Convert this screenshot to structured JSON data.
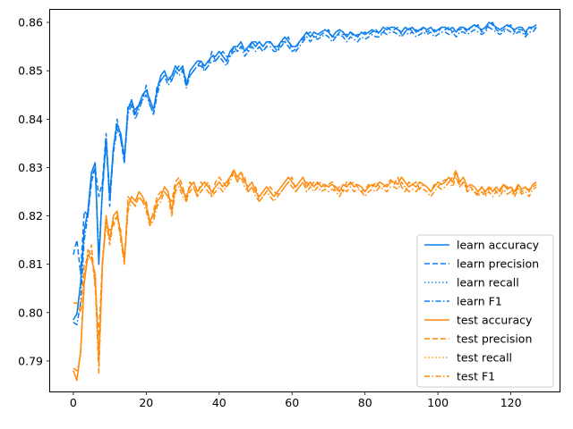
{
  "chart_data": {
    "type": "line",
    "title": "",
    "xlabel": "",
    "ylabel": "",
    "xlim": [
      -6.35,
      133.35
    ],
    "ylim": [
      0.7837,
      0.8626
    ],
    "xticks": [
      0,
      20,
      40,
      60,
      80,
      100,
      120
    ],
    "yticks": [
      0.79,
      0.8,
      0.81,
      0.82,
      0.83,
      0.84,
      0.85,
      0.86
    ],
    "ytick_labels": [
      "0.79",
      "0.80",
      "0.81",
      "0.82",
      "0.83",
      "0.84",
      "0.85",
      "0.86"
    ],
    "grid": false,
    "legend_position": "lower-right",
    "colors": {
      "learn": "#1f77b4",
      "test": "#ff7f0e",
      "learn_render": "#0a7ef0",
      "test_render": "#ff8c0f"
    },
    "series": [
      {
        "name": "learn accuracy",
        "color": "#0a7ef0",
        "style": "solid",
        "values": [
          0.7985,
          0.7998,
          0.806,
          0.817,
          0.821,
          0.829,
          0.831,
          0.81,
          0.826,
          0.836,
          0.824,
          0.834,
          0.839,
          0.837,
          0.832,
          0.842,
          0.844,
          0.841,
          0.843,
          0.845,
          0.846,
          0.844,
          0.842,
          0.846,
          0.849,
          0.85,
          0.848,
          0.849,
          0.851,
          0.85,
          0.851,
          0.847,
          0.85,
          0.851,
          0.852,
          0.852,
          0.851,
          0.852,
          0.853,
          0.853,
          0.854,
          0.853,
          0.852,
          0.854,
          0.855,
          0.855,
          0.856,
          0.854,
          0.855,
          0.856,
          0.855,
          0.856,
          0.855,
          0.856,
          0.856,
          0.855,
          0.855,
          0.856,
          0.857,
          0.856,
          0.855,
          0.855,
          0.856,
          0.857,
          0.858,
          0.857,
          0.858,
          0.8575,
          0.858,
          0.8585,
          0.858,
          0.857,
          0.858,
          0.8585,
          0.858,
          0.857,
          0.858,
          0.8575,
          0.857,
          0.858,
          0.8575,
          0.858,
          0.8585,
          0.858,
          0.858,
          0.859,
          0.8585,
          0.859,
          0.859,
          0.8585,
          0.858,
          0.859,
          0.8585,
          0.859,
          0.858,
          0.8585,
          0.859,
          0.8585,
          0.859,
          0.858,
          0.8585,
          0.859,
          0.859,
          0.8585,
          0.859,
          0.858,
          0.859,
          0.859,
          0.8585,
          0.859,
          0.8595,
          0.859,
          0.8585,
          0.859,
          0.86,
          0.8595,
          0.859,
          0.8585,
          0.859,
          0.8595,
          0.859,
          0.8585,
          0.859,
          0.859,
          0.858,
          0.859,
          0.859,
          0.8595
        ]
      },
      {
        "name": "learn precision",
        "color": "#0a7ef0",
        "style": "dashed",
        "values": [
          0.812,
          0.815,
          0.808,
          0.821,
          0.82,
          0.827,
          0.83,
          0.824,
          0.827,
          0.837,
          0.822,
          0.834,
          0.84,
          0.836,
          0.831,
          0.843,
          0.843,
          0.842,
          0.843,
          0.844,
          0.847,
          0.843,
          0.841,
          0.847,
          0.848,
          0.849,
          0.849,
          0.848,
          0.85,
          0.851,
          0.85,
          0.848,
          0.849,
          0.85,
          0.851,
          0.852,
          0.85,
          0.851,
          0.854,
          0.852,
          0.853,
          0.854,
          0.853,
          0.853,
          0.855,
          0.854,
          0.855,
          0.855,
          0.854,
          0.856,
          0.856,
          0.855,
          0.854,
          0.855,
          0.856,
          0.855,
          0.854,
          0.856,
          0.856,
          0.857,
          0.854,
          0.8545,
          0.856,
          0.8565,
          0.8575,
          0.858,
          0.857,
          0.857,
          0.8575,
          0.858,
          0.8585,
          0.857,
          0.857,
          0.858,
          0.8575,
          0.8575,
          0.858,
          0.857,
          0.8575,
          0.8575,
          0.858,
          0.8575,
          0.858,
          0.8585,
          0.8575,
          0.858,
          0.859,
          0.8585,
          0.8585,
          0.859,
          0.8575,
          0.858,
          0.859,
          0.858,
          0.8585,
          0.858,
          0.859,
          0.858,
          0.8585,
          0.8585,
          0.858,
          0.859,
          0.8585,
          0.859,
          0.858,
          0.8585,
          0.8585,
          0.859,
          0.858,
          0.859,
          0.859,
          0.8595,
          0.858,
          0.8585,
          0.8595,
          0.86,
          0.8585,
          0.858,
          0.8585,
          0.859,
          0.8595,
          0.858,
          0.8585,
          0.8585,
          0.8575,
          0.859,
          0.8585,
          0.859
        ]
      },
      {
        "name": "learn recall",
        "color": "#0a7ef0",
        "style": "dotted",
        "values": [
          0.7985,
          0.7998,
          0.806,
          0.817,
          0.821,
          0.829,
          0.831,
          0.81,
          0.826,
          0.836,
          0.824,
          0.834,
          0.839,
          0.837,
          0.832,
          0.842,
          0.844,
          0.841,
          0.843,
          0.845,
          0.846,
          0.844,
          0.842,
          0.846,
          0.849,
          0.85,
          0.848,
          0.849,
          0.851,
          0.85,
          0.851,
          0.847,
          0.85,
          0.851,
          0.852,
          0.852,
          0.851,
          0.852,
          0.853,
          0.853,
          0.854,
          0.853,
          0.852,
          0.854,
          0.855,
          0.855,
          0.856,
          0.854,
          0.855,
          0.856,
          0.855,
          0.856,
          0.855,
          0.856,
          0.856,
          0.855,
          0.855,
          0.856,
          0.857,
          0.856,
          0.855,
          0.855,
          0.856,
          0.857,
          0.858,
          0.857,
          0.858,
          0.8575,
          0.858,
          0.8585,
          0.858,
          0.857,
          0.858,
          0.8585,
          0.858,
          0.857,
          0.858,
          0.8575,
          0.857,
          0.858,
          0.8575,
          0.858,
          0.8585,
          0.858,
          0.858,
          0.859,
          0.8585,
          0.859,
          0.859,
          0.8585,
          0.858,
          0.859,
          0.8585,
          0.859,
          0.858,
          0.8585,
          0.859,
          0.8585,
          0.859,
          0.858,
          0.8585,
          0.859,
          0.859,
          0.8585,
          0.859,
          0.858,
          0.859,
          0.859,
          0.8585,
          0.859,
          0.8595,
          0.859,
          0.8585,
          0.859,
          0.86,
          0.8595,
          0.859,
          0.8585,
          0.859,
          0.8595,
          0.859,
          0.8585,
          0.859,
          0.859,
          0.858,
          0.859,
          0.859,
          0.8595
        ]
      },
      {
        "name": "learn F1",
        "color": "#0a7ef0",
        "style": "dashdot",
        "values": [
          0.798,
          0.7975,
          0.802,
          0.815,
          0.82,
          0.828,
          0.83,
          0.812,
          0.825,
          0.835,
          0.823,
          0.833,
          0.838,
          0.836,
          0.831,
          0.841,
          0.843,
          0.84,
          0.842,
          0.844,
          0.845,
          0.843,
          0.841,
          0.845,
          0.848,
          0.849,
          0.847,
          0.848,
          0.85,
          0.849,
          0.85,
          0.8465,
          0.849,
          0.85,
          0.851,
          0.851,
          0.85,
          0.851,
          0.852,
          0.852,
          0.853,
          0.852,
          0.851,
          0.853,
          0.854,
          0.854,
          0.855,
          0.853,
          0.854,
          0.855,
          0.854,
          0.855,
          0.854,
          0.855,
          0.855,
          0.854,
          0.854,
          0.855,
          0.856,
          0.855,
          0.854,
          0.854,
          0.855,
          0.856,
          0.857,
          0.856,
          0.857,
          0.8565,
          0.857,
          0.8575,
          0.857,
          0.856,
          0.857,
          0.8575,
          0.857,
          0.856,
          0.857,
          0.8565,
          0.856,
          0.857,
          0.8565,
          0.857,
          0.8575,
          0.857,
          0.857,
          0.858,
          0.8575,
          0.858,
          0.858,
          0.8575,
          0.857,
          0.858,
          0.8575,
          0.858,
          0.857,
          0.8575,
          0.858,
          0.8575,
          0.858,
          0.857,
          0.8575,
          0.858,
          0.858,
          0.8575,
          0.858,
          0.857,
          0.858,
          0.858,
          0.8575,
          0.858,
          0.8585,
          0.858,
          0.8575,
          0.858,
          0.859,
          0.8585,
          0.858,
          0.8575,
          0.858,
          0.8585,
          0.858,
          0.8575,
          0.858,
          0.858,
          0.857,
          0.858,
          0.858,
          0.859
        ]
      },
      {
        "name": "test accuracy",
        "color": "#ff8c0f",
        "style": "solid",
        "values": [
          0.788,
          0.786,
          0.792,
          0.806,
          0.812,
          0.811,
          0.808,
          0.79,
          0.81,
          0.82,
          0.815,
          0.82,
          0.821,
          0.816,
          0.811,
          0.822,
          0.824,
          0.823,
          0.825,
          0.824,
          0.822,
          0.819,
          0.82,
          0.823,
          0.824,
          0.826,
          0.825,
          0.821,
          0.826,
          0.827,
          0.825,
          0.824,
          0.826,
          0.827,
          0.825,
          0.826,
          0.827,
          0.826,
          0.825,
          0.826,
          0.827,
          0.826,
          0.827,
          0.828,
          0.8295,
          0.828,
          0.829,
          0.827,
          0.826,
          0.827,
          0.825,
          0.824,
          0.825,
          0.826,
          0.825,
          0.824,
          0.825,
          0.826,
          0.827,
          0.828,
          0.827,
          0.826,
          0.827,
          0.828,
          0.826,
          0.827,
          0.826,
          0.827,
          0.826,
          0.8265,
          0.826,
          0.8265,
          0.826,
          0.825,
          0.8265,
          0.826,
          0.827,
          0.826,
          0.8265,
          0.826,
          0.825,
          0.826,
          0.8265,
          0.826,
          0.827,
          0.8265,
          0.826,
          0.827,
          0.827,
          0.8265,
          0.828,
          0.827,
          0.826,
          0.8265,
          0.826,
          0.827,
          0.8265,
          0.826,
          0.825,
          0.826,
          0.827,
          0.8265,
          0.827,
          0.828,
          0.827,
          0.829,
          0.827,
          0.828,
          0.826,
          0.8265,
          0.826,
          0.825,
          0.826,
          0.825,
          0.826,
          0.825,
          0.826,
          0.825,
          0.8265,
          0.8255,
          0.826,
          0.825,
          0.8265,
          0.8255,
          0.826,
          0.825,
          0.8265,
          0.827
        ]
      },
      {
        "name": "test precision",
        "color": "#ff8c0f",
        "style": "dashed",
        "values": [
          0.802,
          0.802,
          0.8,
          0.81,
          0.811,
          0.814,
          0.805,
          0.795,
          0.811,
          0.818,
          0.817,
          0.818,
          0.82,
          0.817,
          0.81,
          0.824,
          0.823,
          0.822,
          0.824,
          0.823,
          0.823,
          0.818,
          0.821,
          0.824,
          0.825,
          0.825,
          0.824,
          0.823,
          0.827,
          0.828,
          0.826,
          0.823,
          0.827,
          0.826,
          0.824,
          0.827,
          0.826,
          0.827,
          0.824,
          0.827,
          0.828,
          0.827,
          0.826,
          0.828,
          0.829,
          0.827,
          0.829,
          0.828,
          0.825,
          0.826,
          0.826,
          0.823,
          0.824,
          0.825,
          0.826,
          0.825,
          0.8245,
          0.825,
          0.826,
          0.827,
          0.828,
          0.825,
          0.826,
          0.827,
          0.827,
          0.826,
          0.827,
          0.8265,
          0.827,
          0.826,
          0.8265,
          0.827,
          0.825,
          0.826,
          0.825,
          0.827,
          0.8265,
          0.827,
          0.826,
          0.825,
          0.8255,
          0.8265,
          0.826,
          0.827,
          0.826,
          0.826,
          0.8265,
          0.8275,
          0.8265,
          0.828,
          0.826,
          0.825,
          0.827,
          0.8265,
          0.827,
          0.8255,
          0.8265,
          0.826,
          0.825,
          0.8265,
          0.826,
          0.827,
          0.8275,
          0.827,
          0.828,
          0.8295,
          0.826,
          0.827,
          0.8255,
          0.826,
          0.825,
          0.8245,
          0.826,
          0.8245,
          0.8255,
          0.826,
          0.825,
          0.8255,
          0.8265,
          0.826,
          0.8255,
          0.8245,
          0.826,
          0.825,
          0.8255,
          0.8255,
          0.826,
          0.8265
        ]
      },
      {
        "name": "test recall",
        "color": "#ff8c0f",
        "style": "dotted",
        "values": [
          0.788,
          0.786,
          0.792,
          0.806,
          0.812,
          0.811,
          0.808,
          0.79,
          0.81,
          0.82,
          0.815,
          0.82,
          0.821,
          0.816,
          0.811,
          0.822,
          0.824,
          0.823,
          0.825,
          0.824,
          0.822,
          0.819,
          0.82,
          0.823,
          0.824,
          0.826,
          0.825,
          0.821,
          0.826,
          0.827,
          0.825,
          0.824,
          0.826,
          0.827,
          0.825,
          0.826,
          0.827,
          0.826,
          0.825,
          0.826,
          0.827,
          0.826,
          0.827,
          0.828,
          0.8295,
          0.828,
          0.829,
          0.827,
          0.826,
          0.827,
          0.825,
          0.824,
          0.825,
          0.826,
          0.825,
          0.824,
          0.825,
          0.826,
          0.827,
          0.828,
          0.827,
          0.826,
          0.827,
          0.828,
          0.826,
          0.827,
          0.826,
          0.827,
          0.826,
          0.8265,
          0.826,
          0.8265,
          0.826,
          0.825,
          0.8265,
          0.826,
          0.827,
          0.826,
          0.8265,
          0.826,
          0.825,
          0.826,
          0.8265,
          0.826,
          0.827,
          0.8265,
          0.826,
          0.827,
          0.827,
          0.8265,
          0.828,
          0.827,
          0.826,
          0.8265,
          0.826,
          0.827,
          0.8265,
          0.826,
          0.825,
          0.826,
          0.827,
          0.8265,
          0.827,
          0.828,
          0.827,
          0.829,
          0.827,
          0.828,
          0.826,
          0.8265,
          0.826,
          0.825,
          0.826,
          0.825,
          0.826,
          0.825,
          0.826,
          0.825,
          0.8265,
          0.8255,
          0.826,
          0.825,
          0.8265,
          0.8255,
          0.826,
          0.825,
          0.8265,
          0.827
        ]
      },
      {
        "name": "test F1",
        "color": "#ff8c0f",
        "style": "dashdot",
        "values": [
          0.7885,
          0.788,
          0.791,
          0.807,
          0.813,
          0.812,
          0.806,
          0.7875,
          0.81,
          0.819,
          0.814,
          0.819,
          0.82,
          0.815,
          0.81,
          0.821,
          0.823,
          0.822,
          0.824,
          0.823,
          0.821,
          0.818,
          0.819,
          0.822,
          0.823,
          0.825,
          0.824,
          0.82,
          0.825,
          0.826,
          0.824,
          0.823,
          0.825,
          0.826,
          0.824,
          0.825,
          0.826,
          0.825,
          0.824,
          0.825,
          0.826,
          0.825,
          0.826,
          0.827,
          0.829,
          0.827,
          0.828,
          0.826,
          0.825,
          0.826,
          0.824,
          0.823,
          0.824,
          0.825,
          0.824,
          0.823,
          0.824,
          0.825,
          0.826,
          0.827,
          0.826,
          0.825,
          0.826,
          0.827,
          0.825,
          0.826,
          0.825,
          0.826,
          0.825,
          0.8255,
          0.825,
          0.8255,
          0.825,
          0.824,
          0.8255,
          0.825,
          0.826,
          0.825,
          0.8255,
          0.825,
          0.824,
          0.825,
          0.8255,
          0.825,
          0.826,
          0.8255,
          0.825,
          0.826,
          0.826,
          0.8255,
          0.827,
          0.826,
          0.825,
          0.8255,
          0.825,
          0.826,
          0.8255,
          0.825,
          0.824,
          0.825,
          0.826,
          0.8255,
          0.826,
          0.827,
          0.826,
          0.828,
          0.826,
          0.827,
          0.825,
          0.8255,
          0.825,
          0.824,
          0.825,
          0.824,
          0.825,
          0.824,
          0.825,
          0.824,
          0.8255,
          0.8245,
          0.825,
          0.824,
          0.8255,
          0.8245,
          0.825,
          0.824,
          0.8255,
          0.826
        ]
      }
    ]
  }
}
